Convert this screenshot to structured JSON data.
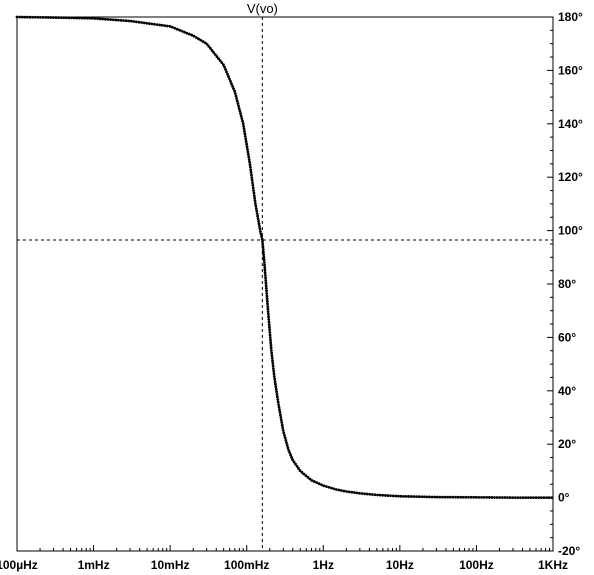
{
  "chart_data": {
    "type": "line",
    "trace_label": "V(vo)",
    "x_scale": "log",
    "y_scale": "linear",
    "xlim": [
      0.0001,
      1000
    ],
    "ylim": [
      -20,
      180
    ],
    "x_ticks": [
      {
        "value": 0.0001,
        "label": "100µHz"
      },
      {
        "value": 0.001,
        "label": "1mHz"
      },
      {
        "value": 0.01,
        "label": "10mHz"
      },
      {
        "value": 0.1,
        "label": "100mHz"
      },
      {
        "value": 1,
        "label": "1Hz"
      },
      {
        "value": 10,
        "label": "10Hz"
      },
      {
        "value": 100,
        "label": "100Hz"
      },
      {
        "value": 1000,
        "label": "1KHz"
      }
    ],
    "y_ticks": [
      {
        "value": 180,
        "label": "180°"
      },
      {
        "value": 160,
        "label": "160°"
      },
      {
        "value": 140,
        "label": "140°"
      },
      {
        "value": 120,
        "label": "120°"
      },
      {
        "value": 100,
        "label": "100°"
      },
      {
        "value": 80,
        "label": "80°"
      },
      {
        "value": 60,
        "label": "60°"
      },
      {
        "value": 40,
        "label": "40°"
      },
      {
        "value": 20,
        "label": "20°"
      },
      {
        "value": 0,
        "label": "0°"
      },
      {
        "value": -20,
        "label": "-20°"
      }
    ],
    "cursor": {
      "x": 0.16,
      "y": 96.5
    },
    "series": [
      {
        "x": [
          0.0001,
          0.0003,
          0.001,
          0.003,
          0.01,
          0.02,
          0.03,
          0.05,
          0.07,
          0.09,
          0.11,
          0.13,
          0.15,
          0.16,
          0.17,
          0.19,
          0.21,
          0.23,
          0.26,
          0.3,
          0.35,
          0.4,
          0.5,
          0.7,
          1,
          1.5,
          2,
          3,
          5,
          10,
          30,
          100,
          300,
          1000
        ],
        "values": [
          180,
          179.8,
          179.5,
          178.5,
          176.5,
          173,
          170,
          162,
          152,
          140,
          125,
          110,
          100,
          96.5,
          88,
          70,
          55,
          45,
          35,
          25,
          18,
          14,
          10,
          6.5,
          4.5,
          3,
          2.3,
          1.6,
          1,
          0.5,
          0.2,
          0.1,
          0,
          0
        ]
      }
    ],
    "grid": false
  }
}
